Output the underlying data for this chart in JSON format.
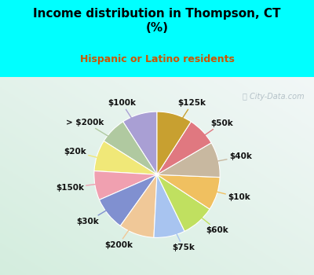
{
  "title": "Income distribution in Thompson, CT\n(%)",
  "subtitle": "Hispanic or Latino residents",
  "title_color": "#000000",
  "subtitle_color": "#cc5500",
  "top_bg": "#00ffff",
  "chart_bg_gradient_top": "#e8f5ee",
  "chart_bg_gradient_bottom": "#c8eedd",
  "watermark": "City-Data.com",
  "labels": [
    "$100k",
    "> $200k",
    "$20k",
    "$150k",
    "$30k",
    "$200k",
    "$75k",
    "$60k",
    "$10k",
    "$40k",
    "$50k",
    "$125k"
  ],
  "values": [
    8.5,
    6.5,
    7.5,
    7.0,
    8.0,
    8.5,
    7.5,
    8.0,
    8.0,
    8.5,
    7.0,
    8.5
  ],
  "colors": [
    "#a99fd4",
    "#b0c9a0",
    "#f0e878",
    "#f0a0b0",
    "#8090d0",
    "#f0c898",
    "#a8c4f0",
    "#c0e060",
    "#f0c060",
    "#c8b8a0",
    "#e07880",
    "#c8a030"
  ],
  "startangle": 90,
  "label_fontsize": 7.5
}
